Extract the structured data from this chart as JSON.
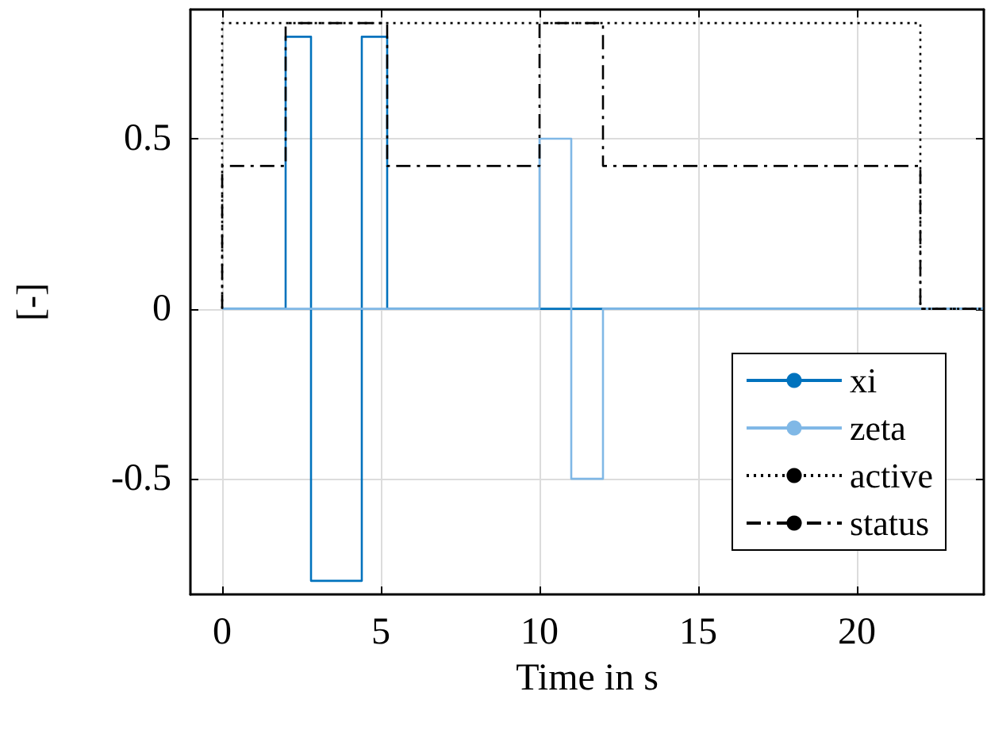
{
  "chart_data": {
    "type": "step",
    "xlabel": "Time in s",
    "ylabel": "[-]",
    "xlim": [
      -1,
      24
    ],
    "ylim": [
      -0.84,
      0.88
    ],
    "xticks": [
      0,
      5,
      10,
      15,
      20
    ],
    "yticks": [
      -0.5,
      0,
      0.5
    ],
    "grid": true,
    "legend": "bottom right",
    "series": [
      {
        "name": "xi",
        "color": "#0072bd",
        "line_style": "solid",
        "x": [
          0,
          2,
          2.8,
          4.4,
          5.2,
          24
        ],
        "values": [
          0,
          0.8,
          -0.8,
          0.8,
          0,
          0
        ]
      },
      {
        "name": "zeta",
        "color": "#80b8e6",
        "line_style": "solid",
        "x": [
          0,
          10,
          11,
          12,
          24
        ],
        "values": [
          0,
          0.5,
          -0.5,
          0,
          0
        ]
      },
      {
        "name": "active",
        "color": "#000000",
        "line_style": "dotted",
        "x": [
          0,
          0,
          22,
          24
        ],
        "values": [
          0,
          0.84,
          0,
          0
        ]
      },
      {
        "name": "status",
        "color": "#000000",
        "line_style": "dashdot",
        "x": [
          0,
          0,
          2,
          5.2,
          10,
          12,
          22,
          24
        ],
        "values": [
          0,
          0.42,
          0.84,
          0.42,
          0.84,
          0.42,
          0,
          0
        ]
      }
    ]
  }
}
